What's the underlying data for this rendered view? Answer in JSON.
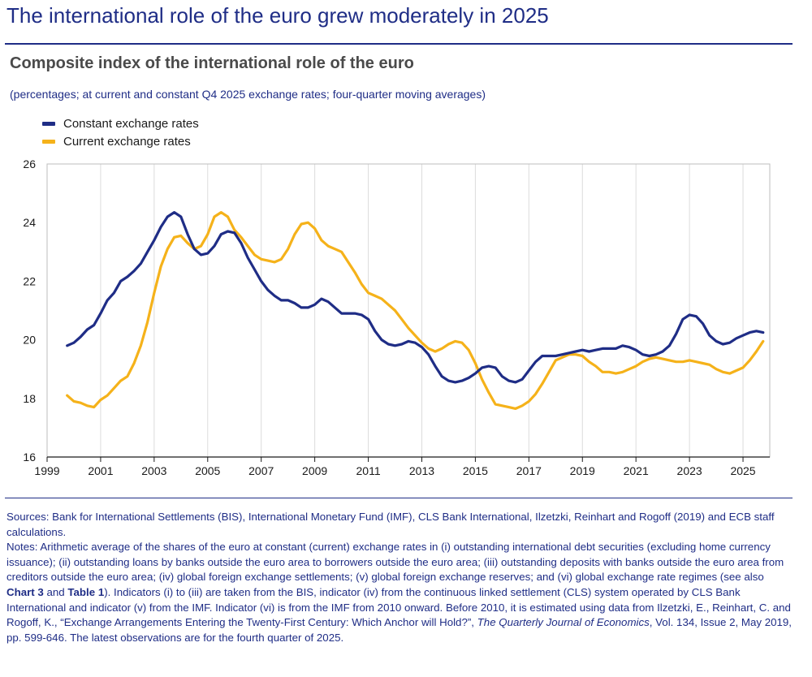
{
  "headline": "The international role of the euro grew moderately in 2025",
  "chart_data": {
    "type": "line",
    "title": "Composite index of the international role of the euro",
    "subtitle": "(percentages; at current and constant Q4 2025 exchange rates; four-quarter moving averages)",
    "xlim": [
      1999,
      2026
    ],
    "ylim": [
      16,
      26
    ],
    "x_ticks": [
      1999,
      2001,
      2003,
      2005,
      2007,
      2009,
      2011,
      2013,
      2015,
      2017,
      2019,
      2021,
      2023,
      2025
    ],
    "y_ticks": [
      16,
      18,
      20,
      22,
      24,
      26
    ],
    "grid": "x-vertical",
    "legend_position": "top-left",
    "series": [
      {
        "name": "Constant exchange rates",
        "color": "#1f2d86",
        "points": [
          [
            1999.75,
            19.8
          ],
          [
            2000.0,
            19.9
          ],
          [
            2000.25,
            20.1
          ],
          [
            2000.5,
            20.35
          ],
          [
            2000.75,
            20.5
          ],
          [
            2001.0,
            20.9
          ],
          [
            2001.25,
            21.35
          ],
          [
            2001.5,
            21.6
          ],
          [
            2001.75,
            22.0
          ],
          [
            2002.0,
            22.15
          ],
          [
            2002.25,
            22.35
          ],
          [
            2002.5,
            22.6
          ],
          [
            2002.75,
            23.0
          ],
          [
            2003.0,
            23.4
          ],
          [
            2003.25,
            23.85
          ],
          [
            2003.5,
            24.2
          ],
          [
            2003.75,
            24.35
          ],
          [
            2004.0,
            24.2
          ],
          [
            2004.25,
            23.6
          ],
          [
            2004.5,
            23.1
          ],
          [
            2004.75,
            22.9
          ],
          [
            2005.0,
            22.95
          ],
          [
            2005.25,
            23.2
          ],
          [
            2005.5,
            23.6
          ],
          [
            2005.75,
            23.7
          ],
          [
            2006.0,
            23.65
          ],
          [
            2006.25,
            23.3
          ],
          [
            2006.5,
            22.8
          ],
          [
            2006.75,
            22.4
          ],
          [
            2007.0,
            22.0
          ],
          [
            2007.25,
            21.7
          ],
          [
            2007.5,
            21.5
          ],
          [
            2007.75,
            21.35
          ],
          [
            2008.0,
            21.35
          ],
          [
            2008.25,
            21.25
          ],
          [
            2008.5,
            21.1
          ],
          [
            2008.75,
            21.1
          ],
          [
            2009.0,
            21.2
          ],
          [
            2009.25,
            21.4
          ],
          [
            2009.5,
            21.3
          ],
          [
            2009.75,
            21.1
          ],
          [
            2010.0,
            20.9
          ],
          [
            2010.25,
            20.9
          ],
          [
            2010.5,
            20.9
          ],
          [
            2010.75,
            20.85
          ],
          [
            2011.0,
            20.7
          ],
          [
            2011.25,
            20.3
          ],
          [
            2011.5,
            20.0
          ],
          [
            2011.75,
            19.85
          ],
          [
            2012.0,
            19.8
          ],
          [
            2012.25,
            19.85
          ],
          [
            2012.5,
            19.95
          ],
          [
            2012.75,
            19.9
          ],
          [
            2013.0,
            19.75
          ],
          [
            2013.25,
            19.5
          ],
          [
            2013.5,
            19.1
          ],
          [
            2013.75,
            18.75
          ],
          [
            2014.0,
            18.6
          ],
          [
            2014.25,
            18.55
          ],
          [
            2014.5,
            18.6
          ],
          [
            2014.75,
            18.7
          ],
          [
            2015.0,
            18.85
          ],
          [
            2015.25,
            19.05
          ],
          [
            2015.5,
            19.1
          ],
          [
            2015.75,
            19.05
          ],
          [
            2016.0,
            18.75
          ],
          [
            2016.25,
            18.6
          ],
          [
            2016.5,
            18.55
          ],
          [
            2016.75,
            18.65
          ],
          [
            2017.0,
            18.95
          ],
          [
            2017.25,
            19.25
          ],
          [
            2017.5,
            19.45
          ],
          [
            2017.75,
            19.45
          ],
          [
            2018.0,
            19.45
          ],
          [
            2018.25,
            19.5
          ],
          [
            2018.5,
            19.55
          ],
          [
            2018.75,
            19.6
          ],
          [
            2019.0,
            19.65
          ],
          [
            2019.25,
            19.6
          ],
          [
            2019.5,
            19.65
          ],
          [
            2019.75,
            19.7
          ],
          [
            2020.0,
            19.7
          ],
          [
            2020.25,
            19.7
          ],
          [
            2020.5,
            19.8
          ],
          [
            2020.75,
            19.75
          ],
          [
            2021.0,
            19.65
          ],
          [
            2021.25,
            19.5
          ],
          [
            2021.5,
            19.45
          ],
          [
            2021.75,
            19.5
          ],
          [
            2022.0,
            19.6
          ],
          [
            2022.25,
            19.8
          ],
          [
            2022.5,
            20.2
          ],
          [
            2022.75,
            20.7
          ],
          [
            2023.0,
            20.85
          ],
          [
            2023.25,
            20.8
          ],
          [
            2023.5,
            20.55
          ],
          [
            2023.75,
            20.15
          ],
          [
            2024.0,
            19.95
          ],
          [
            2024.25,
            19.85
          ],
          [
            2024.5,
            19.9
          ],
          [
            2024.75,
            20.05
          ],
          [
            2025.0,
            20.15
          ],
          [
            2025.25,
            20.25
          ],
          [
            2025.5,
            20.3
          ],
          [
            2025.75,
            20.25
          ]
        ]
      },
      {
        "name": "Current exchange rates",
        "color": "#f5b21a",
        "points": [
          [
            1999.75,
            18.1
          ],
          [
            2000.0,
            17.9
          ],
          [
            2000.25,
            17.85
          ],
          [
            2000.5,
            17.75
          ],
          [
            2000.75,
            17.7
          ],
          [
            2001.0,
            17.95
          ],
          [
            2001.25,
            18.1
          ],
          [
            2001.5,
            18.35
          ],
          [
            2001.75,
            18.6
          ],
          [
            2002.0,
            18.75
          ],
          [
            2002.25,
            19.2
          ],
          [
            2002.5,
            19.8
          ],
          [
            2002.75,
            20.6
          ],
          [
            2003.0,
            21.6
          ],
          [
            2003.25,
            22.5
          ],
          [
            2003.5,
            23.1
          ],
          [
            2003.75,
            23.5
          ],
          [
            2004.0,
            23.55
          ],
          [
            2004.25,
            23.3
          ],
          [
            2004.5,
            23.1
          ],
          [
            2004.75,
            23.2
          ],
          [
            2005.0,
            23.6
          ],
          [
            2005.25,
            24.2
          ],
          [
            2005.5,
            24.35
          ],
          [
            2005.75,
            24.2
          ],
          [
            2006.0,
            23.75
          ],
          [
            2006.25,
            23.5
          ],
          [
            2006.5,
            23.2
          ],
          [
            2006.75,
            22.9
          ],
          [
            2007.0,
            22.75
          ],
          [
            2007.25,
            22.7
          ],
          [
            2007.5,
            22.65
          ],
          [
            2007.75,
            22.75
          ],
          [
            2008.0,
            23.1
          ],
          [
            2008.25,
            23.6
          ],
          [
            2008.5,
            23.95
          ],
          [
            2008.75,
            24.0
          ],
          [
            2009.0,
            23.8
          ],
          [
            2009.25,
            23.4
          ],
          [
            2009.5,
            23.2
          ],
          [
            2009.75,
            23.1
          ],
          [
            2010.0,
            23.0
          ],
          [
            2010.25,
            22.65
          ],
          [
            2010.5,
            22.3
          ],
          [
            2010.75,
            21.9
          ],
          [
            2011.0,
            21.6
          ],
          [
            2011.25,
            21.5
          ],
          [
            2011.5,
            21.4
          ],
          [
            2011.75,
            21.2
          ],
          [
            2012.0,
            21.0
          ],
          [
            2012.25,
            20.7
          ],
          [
            2012.5,
            20.4
          ],
          [
            2012.75,
            20.15
          ],
          [
            2013.0,
            19.9
          ],
          [
            2013.25,
            19.7
          ],
          [
            2013.5,
            19.6
          ],
          [
            2013.75,
            19.7
          ],
          [
            2014.0,
            19.85
          ],
          [
            2014.25,
            19.95
          ],
          [
            2014.5,
            19.9
          ],
          [
            2014.75,
            19.65
          ],
          [
            2015.0,
            19.2
          ],
          [
            2015.25,
            18.65
          ],
          [
            2015.5,
            18.2
          ],
          [
            2015.75,
            17.8
          ],
          [
            2016.0,
            17.75
          ],
          [
            2016.25,
            17.7
          ],
          [
            2016.5,
            17.65
          ],
          [
            2016.75,
            17.75
          ],
          [
            2017.0,
            17.9
          ],
          [
            2017.25,
            18.15
          ],
          [
            2017.5,
            18.5
          ],
          [
            2017.75,
            18.9
          ],
          [
            2018.0,
            19.3
          ],
          [
            2018.25,
            19.4
          ],
          [
            2018.5,
            19.5
          ],
          [
            2018.75,
            19.5
          ],
          [
            2019.0,
            19.45
          ],
          [
            2019.25,
            19.25
          ],
          [
            2019.5,
            19.1
          ],
          [
            2019.75,
            18.9
          ],
          [
            2020.0,
            18.9
          ],
          [
            2020.25,
            18.85
          ],
          [
            2020.5,
            18.9
          ],
          [
            2020.75,
            19.0
          ],
          [
            2021.0,
            19.1
          ],
          [
            2021.25,
            19.25
          ],
          [
            2021.5,
            19.35
          ],
          [
            2021.75,
            19.4
          ],
          [
            2022.0,
            19.35
          ],
          [
            2022.25,
            19.3
          ],
          [
            2022.5,
            19.25
          ],
          [
            2022.75,
            19.25
          ],
          [
            2023.0,
            19.3
          ],
          [
            2023.25,
            19.25
          ],
          [
            2023.5,
            19.2
          ],
          [
            2023.75,
            19.15
          ],
          [
            2024.0,
            19.0
          ],
          [
            2024.25,
            18.9
          ],
          [
            2024.5,
            18.85
          ],
          [
            2024.75,
            18.95
          ],
          [
            2025.0,
            19.05
          ],
          [
            2025.25,
            19.3
          ],
          [
            2025.5,
            19.6
          ],
          [
            2025.75,
            19.95
          ]
        ]
      }
    ]
  },
  "notes": {
    "sources": "Sources: Bank for International Settlements (BIS), International Monetary Fund (IMF), CLS Bank International, Ilzetzki, Reinhart and Rogoff (2019) and ECB staff calculations.",
    "n1": "Notes: Arithmetic average of the shares of the euro at constant (current) exchange rates in (i) outstanding international debt securities (excluding home currency issuance); (ii) outstanding loans by banks outside the euro area to borrowers outside the euro area; (iii) outstanding deposits with banks outside the euro area from creditors outside the euro area; (iv) global foreign exchange settlements; (v) global foreign exchange reserves; and (vi) global exchange rate regimes (see also ",
    "chart3": "Chart 3",
    "and": " and ",
    "table1": "Table 1",
    "n2": "). Indicators (i) to (iii) are taken from the BIS, indicator (iv) from the continuous linked settlement (CLS) system operated by CLS Bank International and indicator (v) from the IMF. Indicator (vi) is from the IMF from 2010 onward. Before 2010, it is estimated using data from Ilzetzki, E., Reinhart, C. and Rogoff, K., “Exchange Arrangements Entering the Twenty-First Century: Which Anchor will Hold?”, ",
    "journal": "The Quarterly Journal of Economics",
    "n3": ", Vol. 134, Issue 2, May 2019, pp. 599-646. The latest observations are for the fourth quarter of 2025."
  }
}
